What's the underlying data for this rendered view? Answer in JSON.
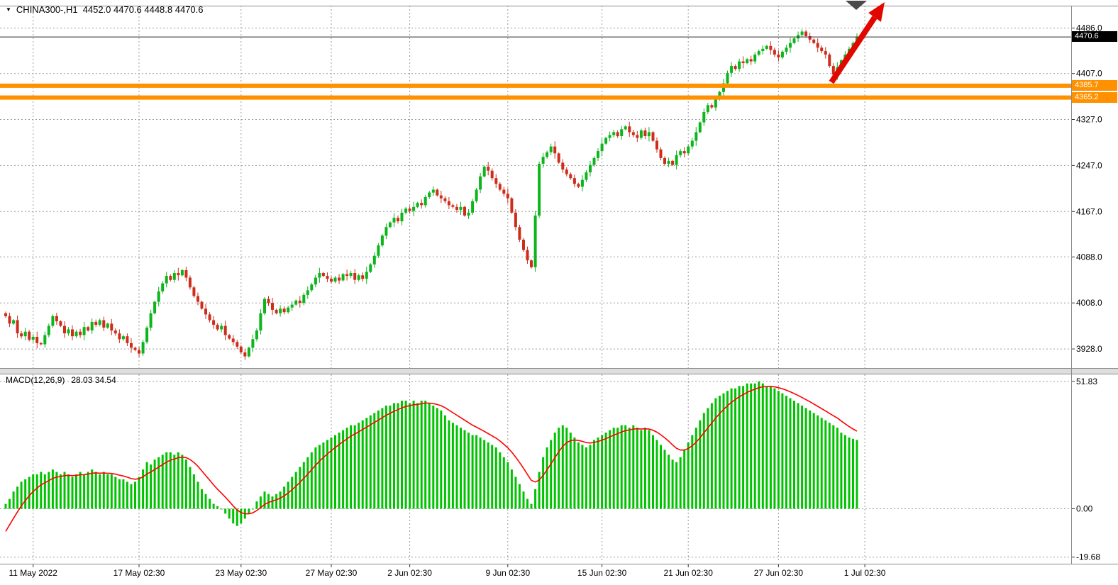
{
  "colors": {
    "background": "#FFFFFF",
    "up": "#0CB51C",
    "down": "#CE2D1C",
    "macd_hist": "#00C300",
    "macd_signal": "#FF0000",
    "orange": "#FF9100",
    "grid": "#9B9B9B",
    "price_line": "#2B2B2B",
    "badge_bg": "#000000",
    "badge_text": "#FFFFFF",
    "text": "#000000",
    "arrow": "#E10600",
    "separator": "#8A8A8A"
  },
  "header": {
    "dropdown_icon": "▼",
    "symbol": "CHINA300-,H1",
    "ohlc": "4452.0 4470.6 4448.8 4470.6"
  },
  "price_scale": {
    "current_badge": "4470.6"
  },
  "macd_panel": {
    "label": "MACD(12,26,9)",
    "values": "28.03 34.54"
  },
  "annotations": {
    "trend_arrow": {
      "direction": "up-right",
      "color": "#E10600"
    }
  },
  "chart_data": {
    "type": "candlestick+macd",
    "symbol": "CHINA300-,H1",
    "timeframe": "H1",
    "main": {
      "ylim": [
        3896,
        4525
      ],
      "yticks": [
        "4486.0",
        "4407.0",
        "4327.0",
        "4247.0",
        "4167.0",
        "4088.0",
        "4008.0",
        "3928.0"
      ],
      "current_price": 4470.6,
      "hlines": [
        {
          "value": 4385.7,
          "label": "4385.7"
        },
        {
          "value": 4365.2,
          "label": "4365.2"
        }
      ],
      "first_open": 3990,
      "wick_pattern": [
        3,
        6,
        2,
        8,
        4,
        7,
        3,
        5,
        9,
        2,
        6,
        4
      ],
      "closes": [
        3985,
        3972,
        3978,
        3955,
        3950,
        3958,
        3944,
        3949,
        3938,
        3936,
        3952,
        3968,
        3985,
        3976,
        3968,
        3955,
        3962,
        3950,
        3958,
        3952,
        3966,
        3960,
        3975,
        3970,
        3978,
        3965,
        3972,
        3960,
        3955,
        3945,
        3950,
        3938,
        3930,
        3926,
        3920,
        3940,
        3965,
        3990,
        4010,
        4028,
        4042,
        4055,
        4048,
        4060,
        4056,
        4065,
        4052,
        4035,
        4020,
        4010,
        3998,
        3988,
        3978,
        3970,
        3962,
        3968,
        3952,
        3946,
        3940,
        3932,
        3922,
        3915,
        3930,
        3945,
        3960,
        3990,
        4015,
        4008,
        3996,
        3990,
        3998,
        3992,
        4000,
        4005,
        4012,
        4008,
        4022,
        4030,
        4040,
        4052,
        4060,
        4055,
        4050,
        4045,
        4052,
        4047,
        4058,
        4055,
        4060,
        4048,
        4056,
        4050,
        4062,
        4075,
        4090,
        4108,
        4125,
        4140,
        4148,
        4156,
        4150,
        4165,
        4172,
        4168,
        4175,
        4182,
        4178,
        4192,
        4200,
        4205,
        4195,
        4190,
        4185,
        4178,
        4175,
        4170,
        4175,
        4160,
        4165,
        4185,
        4205,
        4228,
        4245,
        4238,
        4225,
        4215,
        4205,
        4198,
        4190,
        4165,
        4140,
        4118,
        4100,
        4082,
        4070,
        4160,
        4250,
        4262,
        4270,
        4280,
        4268,
        4252,
        4240,
        4232,
        4225,
        4215,
        4210,
        4222,
        4235,
        4248,
        4260,
        4272,
        4285,
        4295,
        4300,
        4305,
        4298,
        4310,
        4315,
        4305,
        4300,
        4295,
        4308,
        4298,
        4305,
        4290,
        4275,
        4260,
        4250,
        4255,
        4248,
        4265,
        4272,
        4268,
        4280,
        4290,
        4305,
        4322,
        4340,
        4352,
        4348,
        4362,
        4375,
        4390,
        4408,
        4420,
        4415,
        4428,
        4425,
        4432,
        4428,
        4440,
        4446,
        4450,
        4455,
        4448,
        4440,
        4435,
        4445,
        4452,
        4460,
        4468,
        4474,
        4480,
        4472,
        4466,
        4460,
        4452,
        4446,
        4440,
        4420,
        4405,
        4418,
        4430,
        4440,
        4450,
        4460,
        4470.6
      ]
    },
    "xticks": [
      {
        "i": 7,
        "label": "11 May 2022"
      },
      {
        "i": 34,
        "label": "17 May 02:30"
      },
      {
        "i": 60,
        "label": "23 May 02:30"
      },
      {
        "i": 83,
        "label": "27 May 02:30"
      },
      {
        "i": 103,
        "label": "2 Jun 02:30"
      },
      {
        "i": 128,
        "label": "9 Jun 02:30"
      },
      {
        "i": 152,
        "label": "15 Jun 02:30"
      },
      {
        "i": 174,
        "label": "21 Jun 02:30"
      },
      {
        "i": 197,
        "label": "27 Jun 02:30"
      },
      {
        "i": 219,
        "label": "1 Jul 02:30"
      }
    ],
    "macd": {
      "params": "12,26,9",
      "value": 28.03,
      "signal_value": 34.54,
      "ylim": [
        -21.8,
        54.7
      ],
      "yticks": [
        "51.83",
        "0.00",
        "-19.68"
      ],
      "signal_seed": -12,
      "signal_smoothing": 0.2,
      "histogram": [
        2,
        4,
        7,
        9,
        11,
        12,
        13,
        14,
        14,
        15,
        14,
        15,
        16,
        15,
        14,
        15,
        14,
        13,
        14,
        15,
        14,
        15,
        16,
        15,
        14,
        15,
        14,
        14,
        13,
        12,
        12,
        11,
        10,
        11,
        13,
        16,
        19,
        18,
        20,
        21,
        22,
        23,
        23,
        22,
        23,
        22,
        20,
        17,
        14,
        11,
        8,
        6,
        4,
        2,
        1,
        0,
        -2,
        -4,
        -6,
        -7,
        -6,
        -4,
        -2,
        0,
        3,
        5,
        7,
        6,
        5,
        6,
        7,
        9,
        11,
        13,
        15,
        17,
        19,
        21,
        23,
        25,
        26,
        27,
        28,
        29,
        30,
        31,
        32,
        33,
        34,
        34,
        35,
        36,
        37,
        38,
        39,
        40,
        41,
        42,
        42,
        43,
        43,
        44,
        44,
        43,
        44,
        43,
        44,
        44,
        43,
        42,
        41,
        40,
        38,
        36,
        35,
        34,
        33,
        32,
        31,
        30,
        30,
        29,
        28,
        27,
        26,
        25,
        23,
        21,
        19,
        16,
        13,
        10,
        7,
        4,
        2,
        8,
        15,
        21,
        25,
        28,
        31,
        33,
        34,
        33,
        31,
        29,
        27,
        26,
        25,
        26,
        28,
        29,
        30,
        31,
        32,
        33,
        33,
        34,
        34,
        33,
        34,
        33,
        32,
        33,
        32,
        30,
        28,
        26,
        24,
        22,
        20,
        19,
        21,
        24,
        27,
        30,
        33,
        36,
        39,
        41,
        43,
        45,
        46,
        47,
        48,
        49,
        49,
        50,
        50,
        51,
        51,
        51,
        51.8,
        51,
        50,
        50,
        49,
        48,
        47,
        46,
        45,
        44,
        43,
        42,
        41,
        40,
        39,
        38,
        37,
        36,
        35,
        34,
        33,
        31,
        30,
        29,
        28.5,
        28.03
      ]
    }
  }
}
